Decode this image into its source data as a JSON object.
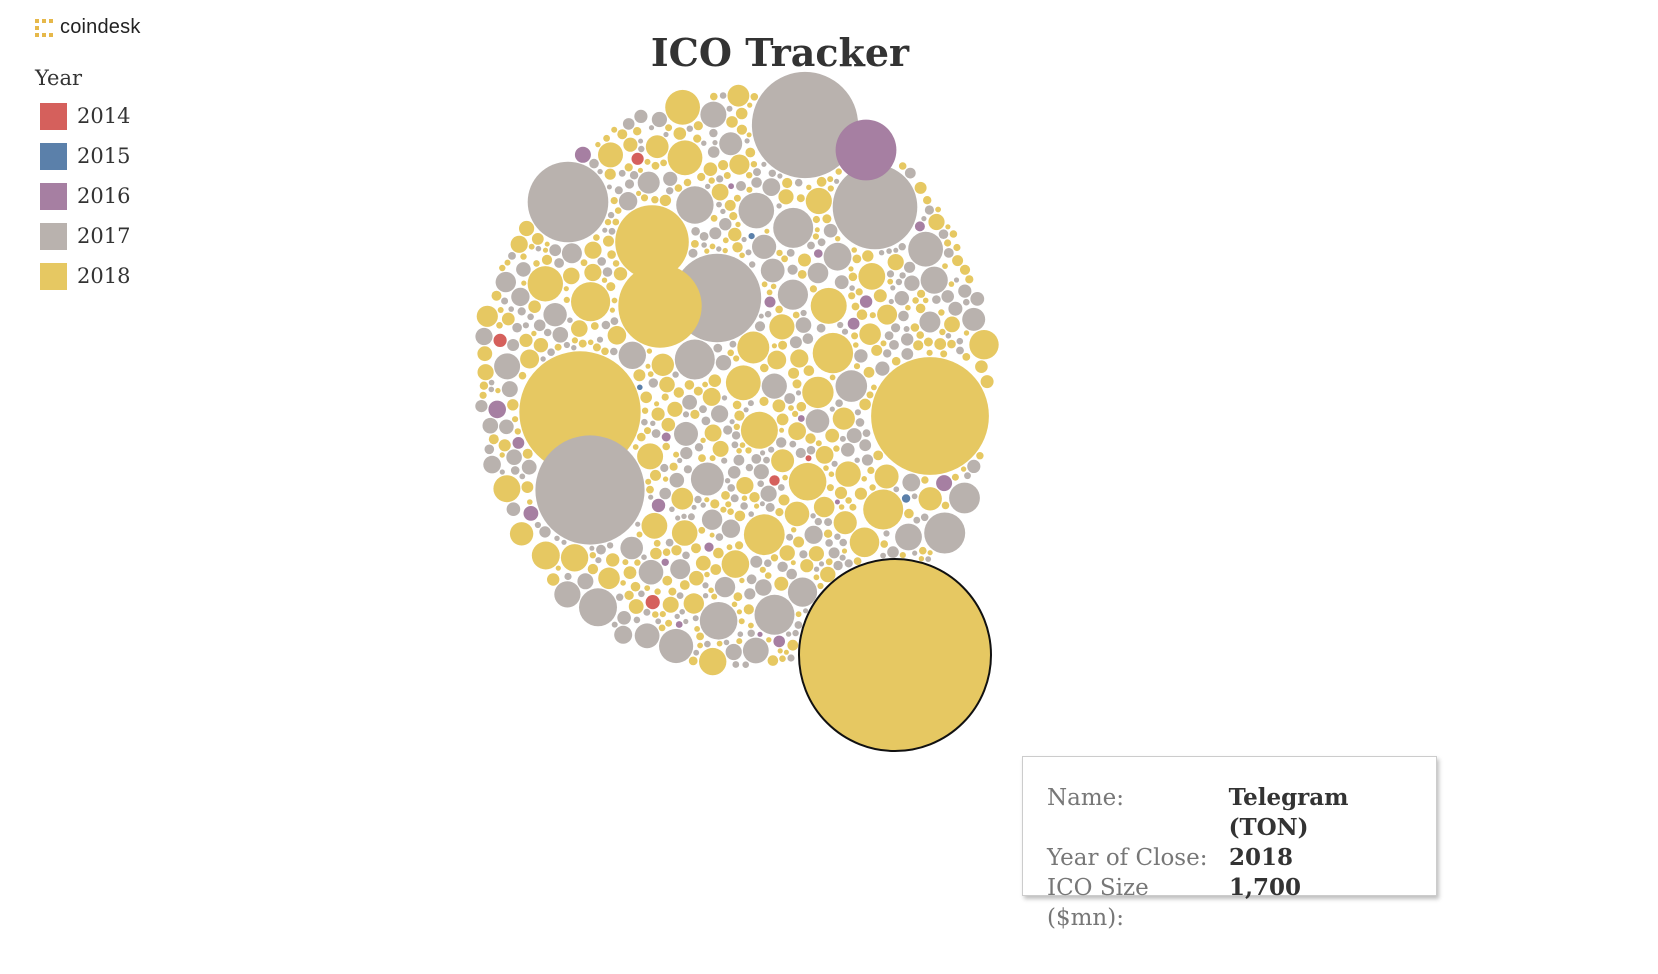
{
  "logo": {
    "text": "coindesk"
  },
  "title": "ICO Tracker",
  "legend": {
    "title": "Year",
    "items": [
      {
        "label": "2014",
        "color": "#d5605c"
      },
      {
        "label": "2015",
        "color": "#5b80aa"
      },
      {
        "label": "2016",
        "color": "#a67fa2"
      },
      {
        "label": "2017",
        "color": "#b9b2ae"
      },
      {
        "label": "2018",
        "color": "#e6c862"
      }
    ]
  },
  "tooltip": {
    "name_key": "Name:",
    "name_val": "Telegram (TON)",
    "year_key": "Year of Close:",
    "year_val": "2018",
    "size_key": "ICO Size ($mn):",
    "size_val": "1,700"
  },
  "chart_data": {
    "type": "bubble",
    "title": "ICO Tracker",
    "legend_title": "Year",
    "legend_position": "top-left",
    "size_unit": "ICO Size ($mn)",
    "highlighted": {
      "name": "Telegram (TON)",
      "year": "2018",
      "value": 1700
    },
    "large_bubbles": [
      {
        "year": "2018",
        "value": 1700
      },
      {
        "year": "2018",
        "value": 680
      },
      {
        "year": "2018",
        "value": 640
      },
      {
        "year": "2017",
        "value": 550
      },
      {
        "year": "2017",
        "value": 520
      },
      {
        "year": "2017",
        "value": 360
      },
      {
        "year": "2017",
        "value": 330
      },
      {
        "year": "2018",
        "value": 320
      },
      {
        "year": "2017",
        "value": 300
      },
      {
        "year": "2018",
        "value": 250
      },
      {
        "year": "2016",
        "value": 170
      }
    ],
    "population_by_year": {
      "2014": 5,
      "2015": 3,
      "2016": 20,
      "2017": 340,
      "2018": 420
    }
  }
}
